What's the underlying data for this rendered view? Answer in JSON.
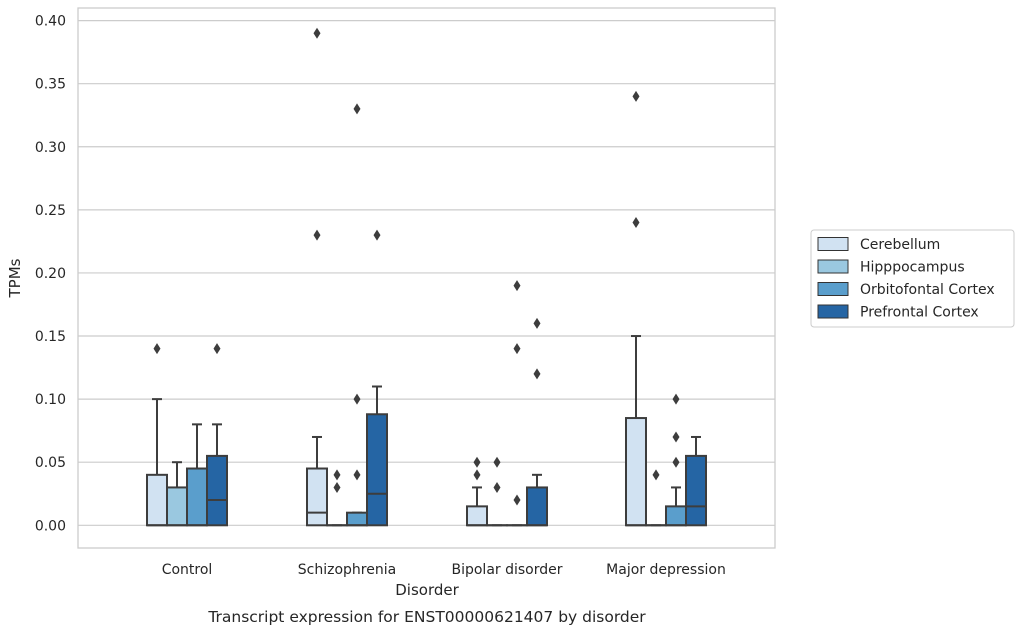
{
  "chart_data": {
    "type": "box",
    "caption": "Transcript expression for ENST00000621407 by disorder",
    "xlabel": "Disorder",
    "ylabel": "TPMs",
    "ylim": [
      -0.018,
      0.41
    ],
    "yticks": [
      "0.00",
      "0.05",
      "0.10",
      "0.15",
      "0.20",
      "0.25",
      "0.30",
      "0.35",
      "0.40"
    ],
    "categories": [
      "Control",
      "Schizophrenia",
      "Bipolar disorder",
      "Major depression"
    ],
    "grid": "horizontal",
    "legend_position": "right",
    "series": [
      {
        "name": "Cerebellum",
        "color": "#d1e2f2",
        "boxes": [
          {
            "q1": 0.0,
            "median": 0.0,
            "q3": 0.04,
            "whislo": 0.0,
            "whishi": 0.1,
            "fliers": [
              0.14
            ]
          },
          {
            "q1": 0.0,
            "median": 0.01,
            "q3": 0.045,
            "whislo": 0.0,
            "whishi": 0.07,
            "fliers": [
              0.23,
              0.39
            ]
          },
          {
            "q1": 0.0,
            "median": 0.0,
            "q3": 0.015,
            "whislo": 0.0,
            "whishi": 0.03,
            "fliers": [
              0.04,
              0.05
            ]
          },
          {
            "q1": 0.0,
            "median": 0.0,
            "q3": 0.085,
            "whislo": 0.0,
            "whishi": 0.15,
            "fliers": [
              0.24,
              0.34
            ]
          }
        ]
      },
      {
        "name": "Hipppocampus",
        "color": "#9ac8e0",
        "boxes": [
          {
            "q1": 0.0,
            "median": 0.0,
            "q3": 0.03,
            "whislo": 0.0,
            "whishi": 0.05,
            "fliers": []
          },
          {
            "q1": 0.0,
            "median": 0.0,
            "q3": 0.0,
            "whislo": 0.0,
            "whishi": 0.0,
            "fliers": [
              0.03,
              0.04
            ]
          },
          {
            "q1": 0.0,
            "median": 0.0,
            "q3": 0.0,
            "whislo": 0.0,
            "whishi": 0.0,
            "fliers": [
              0.03,
              0.05
            ]
          },
          {
            "q1": 0.0,
            "median": 0.0,
            "q3": 0.0,
            "whislo": 0.0,
            "whishi": 0.0,
            "fliers": [
              0.04
            ]
          }
        ]
      },
      {
        "name": "Orbitofontal Cortex",
        "color": "#5a9ecc",
        "boxes": [
          {
            "q1": 0.0,
            "median": 0.0,
            "q3": 0.045,
            "whislo": 0.0,
            "whishi": 0.08,
            "fliers": []
          },
          {
            "q1": 0.0,
            "median": 0.0,
            "q3": 0.01,
            "whislo": 0.0,
            "whishi": 0.01,
            "fliers": [
              0.04,
              0.1,
              0.33
            ]
          },
          {
            "q1": 0.0,
            "median": 0.0,
            "q3": 0.0,
            "whislo": 0.0,
            "whishi": 0.0,
            "fliers": [
              0.02,
              0.14,
              0.19
            ]
          },
          {
            "q1": 0.0,
            "median": 0.0,
            "q3": 0.015,
            "whislo": 0.0,
            "whishi": 0.03,
            "fliers": [
              0.05,
              0.07,
              0.1
            ]
          }
        ]
      },
      {
        "name": "Prefrontal Cortex",
        "color": "#2565a4",
        "boxes": [
          {
            "q1": 0.0,
            "median": 0.02,
            "q3": 0.055,
            "whislo": 0.0,
            "whishi": 0.08,
            "fliers": [
              0.14
            ]
          },
          {
            "q1": 0.0,
            "median": 0.025,
            "q3": 0.088,
            "whislo": 0.0,
            "whishi": 0.11,
            "fliers": [
              0.23
            ]
          },
          {
            "q1": 0.0,
            "median": 0.0,
            "q3": 0.03,
            "whislo": 0.0,
            "whishi": 0.04,
            "fliers": [
              0.12,
              0.16
            ]
          },
          {
            "q1": 0.0,
            "median": 0.015,
            "q3": 0.055,
            "whislo": 0.0,
            "whishi": 0.07,
            "fliers": []
          }
        ]
      }
    ]
  }
}
